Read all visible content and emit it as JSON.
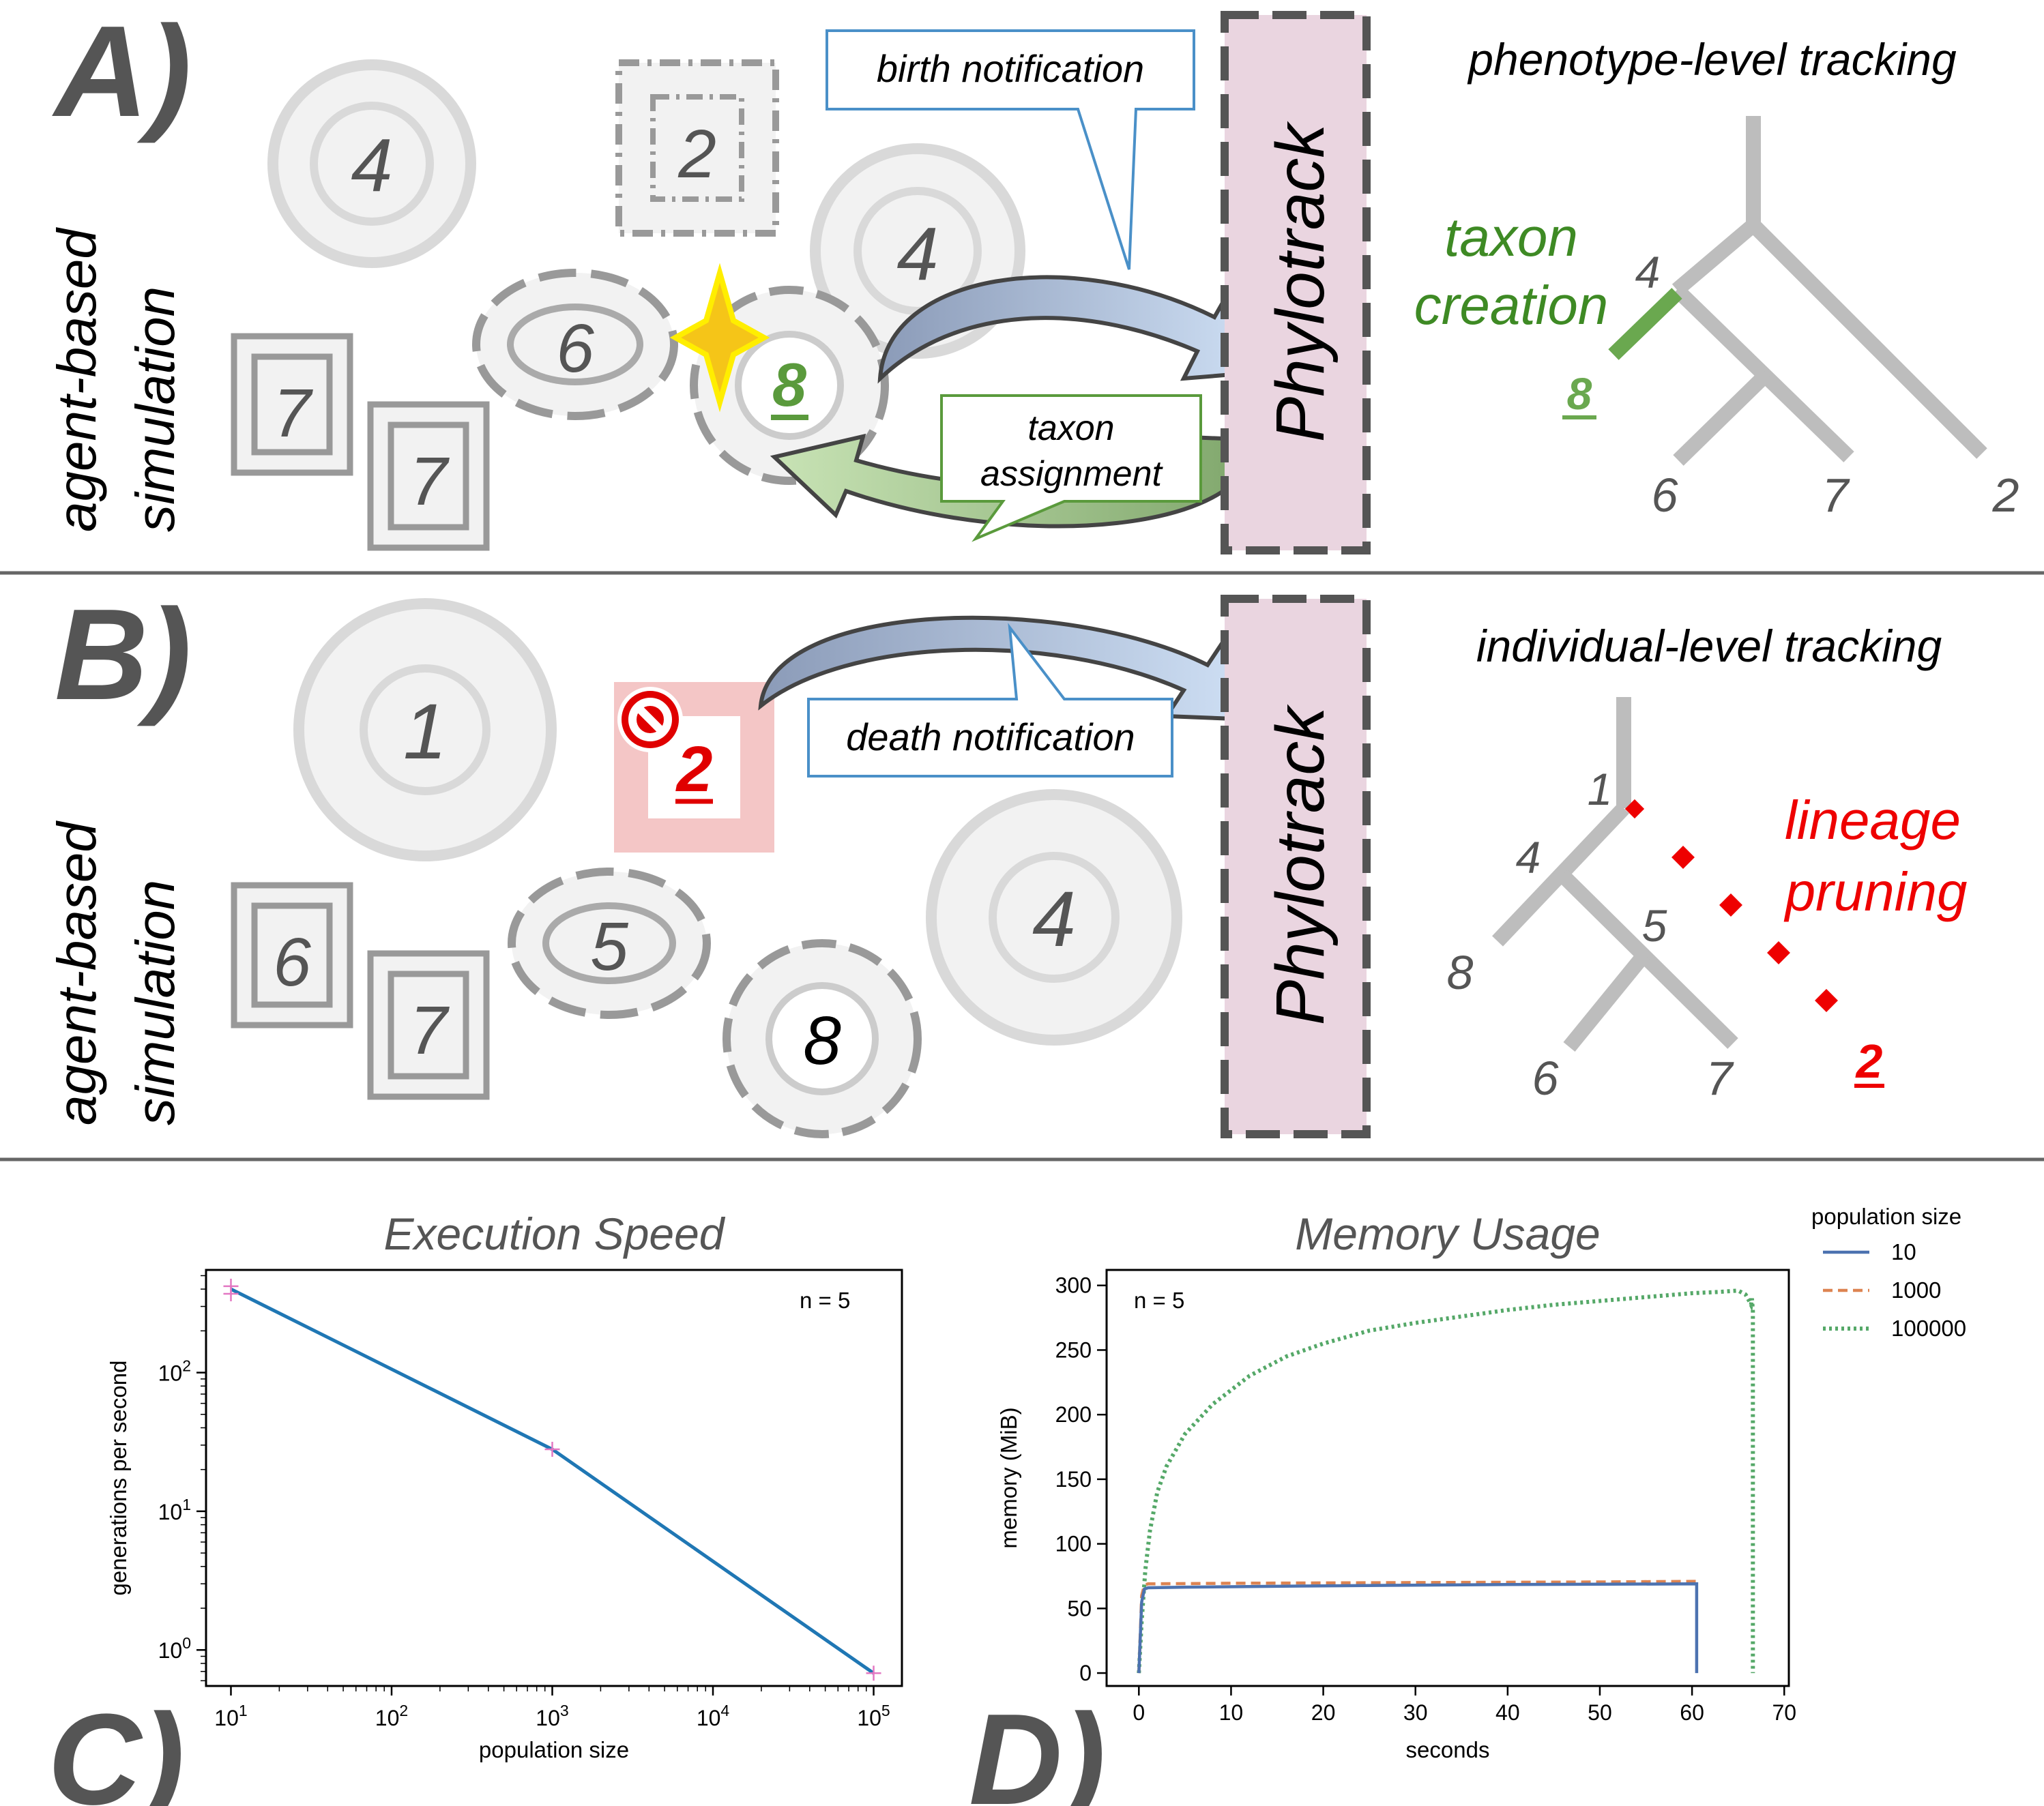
{
  "panel_a": {
    "letter": "A)",
    "side_label_1": "agent-based",
    "side_label_2": "simulation",
    "agents": [
      "4",
      "2",
      "4",
      "6",
      "7",
      "7",
      "8"
    ],
    "callout_birth": "birth notification",
    "callout_taxon_1": "taxon",
    "callout_taxon_2": "assignment",
    "phylotrack": "Phylotrack",
    "tree_title": "phenotype-level tracking",
    "creation_1": "taxon",
    "creation_2": "creation",
    "tree_labels": [
      "4",
      "8",
      "6",
      "7",
      "2"
    ]
  },
  "panel_b": {
    "letter": "B)",
    "side_label_1": "agent-based",
    "side_label_2": "simulation",
    "agents": [
      "1",
      "2",
      "6",
      "7",
      "5",
      "8",
      "4"
    ],
    "callout_death": "death notification",
    "phylotrack": "Phylotrack",
    "tree_title": "individual-level tracking",
    "pruning_1": "lineage",
    "pruning_2": "pruning",
    "tree_labels": [
      "1",
      "4",
      "5",
      "8",
      "6",
      "7",
      "2"
    ]
  },
  "panel_c": {
    "letter": "C)",
    "annotation": "n = 5"
  },
  "panel_d": {
    "letter": "D)",
    "annotation": "n = 5"
  },
  "colors": {
    "green": "#5a9a3c",
    "red": "#ee0000",
    "blue_line": "#4a90c8",
    "phylotrack_fill": "#ead5e0"
  },
  "chart_data": [
    {
      "type": "line",
      "title": "Execution Speed",
      "xlabel": "population size",
      "ylabel": "generations per second",
      "x_scale": "log",
      "y_scale": "log",
      "xlim": [
        7,
        150000
      ],
      "ylim": [
        0.55,
        550
      ],
      "x_ticks": [
        10,
        100,
        1000,
        10000,
        100000
      ],
      "x_tick_labels": [
        [
          "10",
          "1"
        ],
        [
          "10",
          "2"
        ],
        [
          "10",
          "3"
        ],
        [
          "10",
          "4"
        ],
        [
          "10",
          "5"
        ]
      ],
      "y_ticks": [
        1,
        10,
        100
      ],
      "y_tick_labels": [
        [
          "10",
          "0"
        ],
        [
          "10",
          "1"
        ],
        [
          "10",
          "2"
        ]
      ],
      "series": [
        {
          "x": [
            10,
            1000,
            100000
          ],
          "y": [
            400,
            28,
            0.68
          ],
          "color": "#1f77b4"
        }
      ],
      "markers": {
        "x": [
          10,
          10,
          1000,
          100000
        ],
        "y": [
          420,
          370,
          28,
          0.68
        ],
        "color": "#e377c2"
      }
    },
    {
      "type": "line",
      "title": "Memory Usage",
      "xlabel": "seconds",
      "ylabel": "memory (MiB)",
      "xlim": [
        -3.5,
        70.5
      ],
      "ylim": [
        -10,
        312
      ],
      "x_ticks": [
        0,
        10,
        20,
        30,
        40,
        50,
        60,
        70
      ],
      "y_ticks": [
        0,
        50,
        100,
        150,
        200,
        250,
        300
      ],
      "legend_title": "population size",
      "legend_position": "outside-right",
      "series": [
        {
          "name": "10",
          "style": "solid",
          "color": "#4c72b0",
          "x": [
            0,
            0.3,
            0.6,
            1,
            5,
            20,
            40,
            60.4,
            60.5,
            60.5
          ],
          "y": [
            0,
            55,
            65,
            66,
            66.5,
            67.5,
            68.5,
            69,
            69,
            0
          ]
        },
        {
          "name": "1000",
          "style": "dashed",
          "color": "#dd8452",
          "x": [
            0,
            0.3,
            0.6,
            1,
            10,
            30,
            50,
            60.4
          ],
          "y": [
            0,
            60,
            68,
            69,
            69.5,
            70,
            70.5,
            71
          ]
        },
        {
          "name": "100000",
          "style": "dotted",
          "color": "#55a868",
          "x": [
            0,
            0.3,
            0.7,
            1.2,
            2,
            3,
            5,
            8,
            12,
            16,
            20,
            25,
            30,
            35,
            40,
            45,
            50,
            55,
            60,
            63,
            65,
            65.8,
            66.2,
            66.4,
            66.5,
            66.6,
            66.6
          ],
          "y": [
            0,
            40,
            80,
            110,
            140,
            160,
            185,
            208,
            230,
            245,
            255,
            265,
            271,
            276,
            281,
            285,
            288,
            291,
            294,
            295,
            296,
            293,
            288,
            285,
            290,
            280,
            0
          ]
        }
      ]
    }
  ]
}
